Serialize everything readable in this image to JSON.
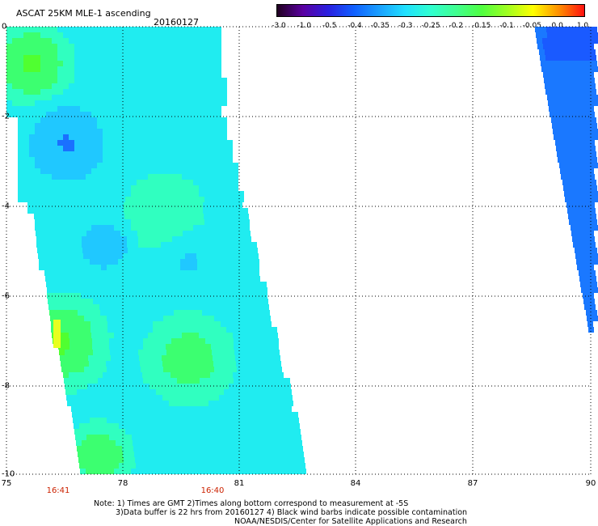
{
  "header": {
    "title": "ASCAT 25KM MLE-1 ascending",
    "date": "20160127"
  },
  "colorbar": {
    "labels": [
      "-3.0",
      "-1.0",
      "-0.5",
      "-0.4",
      "-0.35",
      "-0.3",
      "-0.25",
      "-0.2",
      "-0.15",
      "-0.1",
      "-0.05",
      "0.0",
      "1.0"
    ],
    "colors": [
      "#200020",
      "#5a00a0",
      "#2a20e0",
      "#1060ff",
      "#1aa0ff",
      "#20e0ff",
      "#30ffd0",
      "#40ff90",
      "#50ff40",
      "#a0ff20",
      "#ffff00",
      "#ff9000",
      "#ff1010"
    ]
  },
  "axes": {
    "x_ticks": [
      "75",
      "78",
      "81",
      "84",
      "87",
      "90"
    ],
    "y_ticks": [
      "0",
      "-2",
      "-4",
      "-6",
      "-8",
      "-10"
    ]
  },
  "times": [
    "16:41",
    "16:40"
  ],
  "notes": [
    "Note: 1) Times are GMT 2)Times along bottom correspond to measurement at -5S",
    "3)Data buffer is 22 hrs from 20160127 4) Black wind barbs indicate possible contamination",
    "NOAA/NESDIS/Center for Satellite Applications and Research"
  ]
}
